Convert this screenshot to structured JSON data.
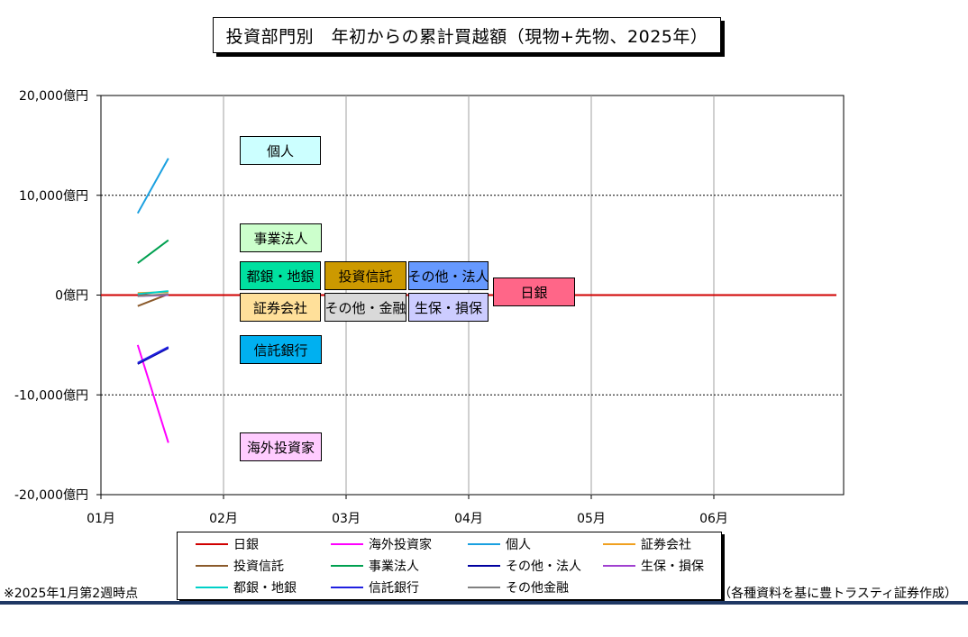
{
  "title": "投資部門別　年初からの累計買越額（現物+先物、2025年）",
  "footnote": "※2025年1月第2週時点",
  "source": "（各種資料を基に豊トラスティ証券作成）",
  "chart_data": {
    "type": "line",
    "x_ticks": [
      "01月",
      "02月",
      "03月",
      "04月",
      "05月",
      "06月"
    ],
    "y_ticks": [
      "20,000億円",
      "10,000億円",
      "0億円",
      "-10,000億円",
      "-20,000億円"
    ],
    "ylim": [
      -20000,
      20000
    ],
    "xlim": [
      0,
      6
    ],
    "grid": true,
    "legend_position": "bottom",
    "series": [
      {
        "name": "日銀",
        "color": "#d00000",
        "x": [
          0,
          6
        ],
        "values": [
          0,
          0
        ]
      },
      {
        "name": "海外投資家",
        "color": "#ff00ff",
        "x": [
          0.3,
          0.55
        ],
        "values": [
          -5000,
          -14800
        ]
      },
      {
        "name": "個人",
        "color": "#1aa0e0",
        "x": [
          0.3,
          0.55
        ],
        "values": [
          8200,
          13700
        ]
      },
      {
        "name": "証券会社",
        "color": "#f0a020",
        "x": [
          0.3,
          0.55
        ],
        "values": [
          200,
          300
        ]
      },
      {
        "name": "投資信託",
        "color": "#8b5a2b",
        "x": [
          0.3,
          0.55
        ],
        "values": [
          -1100,
          100
        ]
      },
      {
        "name": "事業法人",
        "color": "#00a050",
        "x": [
          0.3,
          0.55
        ],
        "values": [
          3200,
          5500
        ]
      },
      {
        "name": "その他・法人",
        "color": "#0000a0",
        "x": [
          0.3,
          0.55
        ],
        "values": [
          -6900,
          -5300
        ]
      },
      {
        "name": "生保・損保",
        "color": "#a040d0",
        "x": [
          0.3,
          0.55
        ],
        "values": [
          -100,
          0
        ]
      },
      {
        "name": "都銀・地銀",
        "color": "#00d0c8",
        "x": [
          0.3,
          0.55
        ],
        "values": [
          100,
          400
        ]
      },
      {
        "name": "信託銀行",
        "color": "#2020e0",
        "x": [
          0.3,
          0.55
        ],
        "values": [
          -6800,
          -5200
        ]
      },
      {
        "name": "その他金融",
        "color": "#808080",
        "x": [
          0.3,
          0.55
        ],
        "values": [
          -100,
          100
        ]
      }
    ],
    "annotations": [
      {
        "text": "個人",
        "fill": "#ccffff"
      },
      {
        "text": "事業法人",
        "fill": "#ccffcc"
      },
      {
        "text": "都銀・地銀",
        "fill": "#00e0a0"
      },
      {
        "text": "投資信託",
        "fill": "#cc9900"
      },
      {
        "text": "その他・法人",
        "fill": "#6699ff"
      },
      {
        "text": "日銀",
        "fill": "#ff6688"
      },
      {
        "text": "証券会社",
        "fill": "#ffe09a"
      },
      {
        "text": "その他・金融",
        "fill": "#d9d9d9"
      },
      {
        "text": "生保・損保",
        "fill": "#ccccff"
      },
      {
        "text": "信託銀行",
        "fill": "#00b0f0"
      },
      {
        "text": "海外投資家",
        "fill": "#ffccff"
      }
    ]
  }
}
